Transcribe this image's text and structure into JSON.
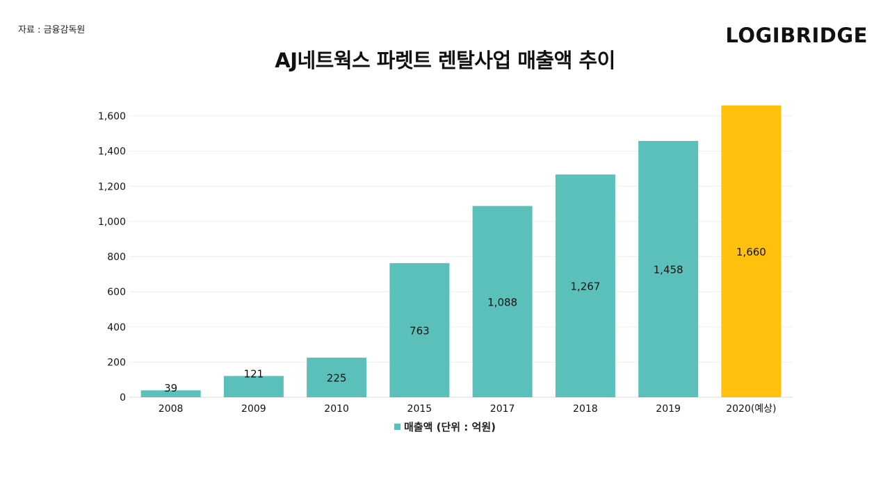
{
  "header": {
    "source": "자료 : 금융감독원",
    "logo": "LOGIBRIDGE",
    "title": "AJ네트웍스 파렛트 렌탈사업 매출액 추이"
  },
  "colors": {
    "primary_bar": "#5bc0b9",
    "highlight_bar": "#ffc10e",
    "grid": "#eeeeee"
  },
  "chart_data": {
    "type": "bar",
    "title": "AJ네트웍스 파렛트 렌탈사업 매출액 추이",
    "categories": [
      "2008",
      "2009",
      "2010",
      "2015",
      "2017",
      "2018",
      "2019",
      "2020(예상)"
    ],
    "series": [
      {
        "name": "매출액 (단위 : 억원)",
        "values": [
          39,
          121,
          225,
          763,
          1088,
          1267,
          1458,
          1660
        ],
        "labels": [
          "39",
          "121",
          "225",
          "763",
          "1,088",
          "1,267",
          "1,458",
          "1,660"
        ]
      }
    ],
    "highlight_index": 7,
    "y_ticks": [
      "0",
      "200",
      "400",
      "600",
      "800",
      "1,000",
      "1,200",
      "1,400",
      "1,600"
    ],
    "ylim": [
      0,
      1600
    ],
    "grid": true,
    "legend_position": "bottom"
  }
}
